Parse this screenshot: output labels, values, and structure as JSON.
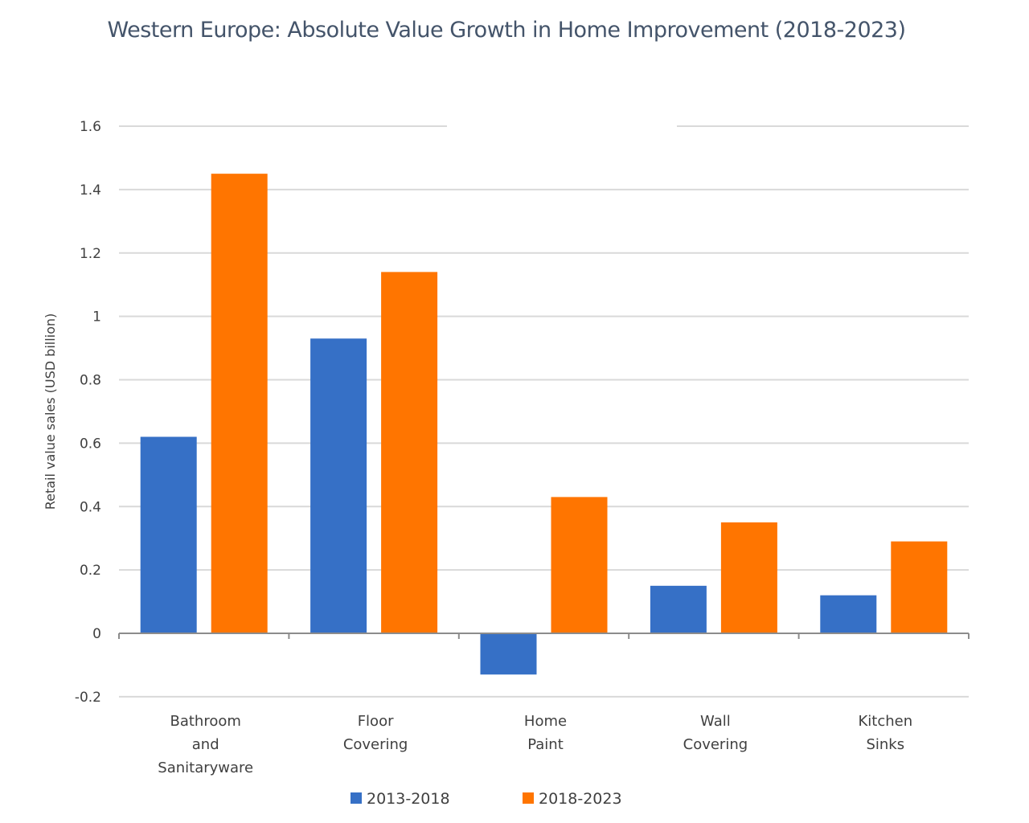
{
  "chart_data": {
    "type": "bar",
    "title": "Western Europe: Absolute Value Growth in Home Improvement (2018-2023)",
    "xlabel": "",
    "ylabel": "Retail value sales (USD billion)",
    "ylim": [
      -0.2,
      1.6
    ],
    "yticks": [
      -0.2,
      0,
      0.2,
      0.4,
      0.6,
      0.8,
      1,
      1.2,
      1.4,
      1.6
    ],
    "ytick_labels": [
      "-0.2",
      "0",
      "0.2",
      "0.4",
      "0.6",
      "0.8",
      "1",
      "1.2",
      "1.4",
      "1.6"
    ],
    "grid": true,
    "categories": [
      [
        "Bathroom",
        "and",
        "Sanitaryware"
      ],
      [
        "Floor",
        "Covering"
      ],
      [
        "Home",
        "Paint"
      ],
      [
        "Wall",
        "Covering"
      ],
      [
        "Kitchen",
        "Sinks"
      ]
    ],
    "series": [
      {
        "name": "2013-2018",
        "color": "#3670c6",
        "values": [
          0.62,
          0.93,
          -0.13,
          0.15,
          0.12
        ]
      },
      {
        "name": "2018-2023",
        "color": "#ff7500",
        "values": [
          1.45,
          1.14,
          0.43,
          0.35,
          0.29
        ]
      }
    ],
    "legend_position": "bottom"
  }
}
